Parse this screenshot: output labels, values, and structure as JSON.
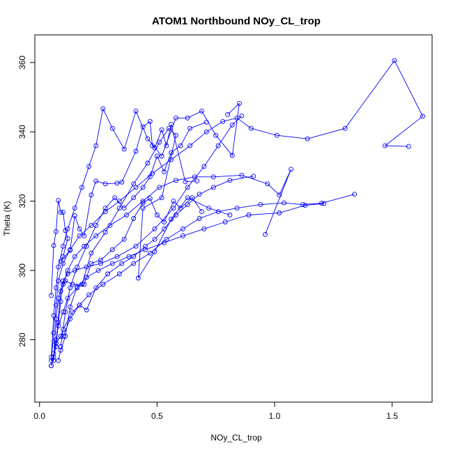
{
  "chart_data": {
    "type": "line",
    "title": "ATOM1 Northbound NOy_CL_trop",
    "xlabel": "NOy_CL_trop",
    "ylabel": "Theta (K)",
    "xlim": [
      -0.02,
      1.67
    ],
    "ylim": [
      262,
      368
    ],
    "xticks": [
      0.0,
      0.5,
      1.0,
      1.5
    ],
    "xtick_labels": [
      "0.0",
      "0.5",
      "1.0",
      "1.5"
    ],
    "yticks": [
      280,
      300,
      320,
      340,
      360
    ],
    "ytick_labels": [
      "280",
      "300",
      "320",
      "340",
      "360"
    ],
    "grid": false,
    "legend": "none",
    "marker": "open-circle",
    "color": "#0000ff",
    "series": [
      {
        "values": [
          [
            0.05,
            272.5
          ],
          [
            0.06,
            276
          ],
          [
            0.07,
            279
          ],
          [
            0.09,
            281
          ],
          [
            0.1,
            283
          ],
          [
            0.14,
            288
          ],
          [
            0.17,
            290
          ],
          [
            0.21,
            293
          ],
          [
            0.27,
            296
          ],
          [
            0.34,
            299
          ],
          [
            0.4,
            302
          ],
          [
            0.47,
            305
          ],
          [
            0.54,
            309
          ],
          [
            0.61,
            312
          ],
          [
            0.68,
            315
          ],
          [
            0.76,
            317
          ],
          [
            0.84,
            318
          ],
          [
            0.94,
            319
          ],
          [
            1.04,
            319.5
          ],
          [
            1.12,
            319
          ],
          [
            1.2,
            319.4
          ],
          [
            1.34,
            322
          ]
        ]
      },
      {
        "values": [
          [
            0.05,
            272.5
          ],
          [
            0.07,
            278
          ],
          [
            0.08,
            285
          ],
          [
            0.09,
            291
          ],
          [
            0.1,
            296
          ],
          [
            0.12,
            300
          ],
          [
            0.15,
            304
          ],
          [
            0.19,
            307
          ],
          [
            0.24,
            310
          ],
          [
            0.3,
            313
          ],
          [
            0.37,
            316
          ],
          [
            0.44,
            320
          ],
          [
            0.51,
            324
          ],
          [
            0.58,
            326
          ],
          [
            0.66,
            327
          ],
          [
            0.74,
            327
          ],
          [
            0.86,
            327.5
          ],
          [
            0.97,
            325
          ],
          [
            1.02,
            321.8
          ],
          [
            1.07,
            329.2
          ],
          [
            0.96,
            310.4
          ]
        ]
      },
      {
        "values": [
          [
            0.05,
            274
          ],
          [
            0.06,
            282
          ],
          [
            0.07,
            290
          ],
          [
            0.08,
            297
          ],
          [
            0.1,
            302
          ],
          [
            0.13,
            306
          ],
          [
            0.17,
            310
          ],
          [
            0.22,
            313
          ],
          [
            0.28,
            317
          ],
          [
            0.34,
            320
          ],
          [
            0.41,
            324
          ],
          [
            0.48,
            328
          ],
          [
            0.56,
            332
          ],
          [
            0.64,
            336
          ],
          [
            0.71,
            340
          ],
          [
            0.78,
            343
          ],
          [
            0.84,
            344
          ],
          [
            0.9,
            341
          ],
          [
            1.01,
            339
          ],
          [
            1.14,
            338
          ],
          [
            1.3,
            341
          ],
          [
            1.51,
            360.6
          ],
          [
            1.63,
            344.5
          ],
          [
            1.47,
            336
          ],
          [
            1.57,
            335.8
          ]
        ]
      },
      {
        "values": [
          [
            0.05,
            275
          ],
          [
            0.06,
            287
          ],
          [
            0.07,
            295
          ],
          [
            0.08,
            301
          ],
          [
            0.1,
            307
          ],
          [
            0.12,
            312
          ],
          [
            0.15,
            318
          ],
          [
            0.18,
            324
          ],
          [
            0.21,
            330
          ],
          [
            0.24,
            336
          ],
          [
            0.27,
            346.7
          ],
          [
            0.31,
            341
          ],
          [
            0.36,
            335
          ],
          [
            0.41,
            346
          ],
          [
            0.46,
            338
          ],
          [
            0.52,
            333
          ],
          [
            0.58,
            344
          ],
          [
            0.63,
            344
          ],
          [
            0.69,
            346
          ],
          [
            0.75,
            339
          ],
          [
            0.82,
            333.2
          ],
          [
            0.85,
            348.2
          ],
          [
            0.8,
            345
          ]
        ]
      },
      {
        "values": [
          [
            0.06,
            275
          ],
          [
            0.07,
            280
          ],
          [
            0.08,
            284
          ],
          [
            0.1,
            288
          ],
          [
            0.12,
            292
          ],
          [
            0.16,
            295
          ],
          [
            0.2,
            298
          ],
          [
            0.25,
            300
          ],
          [
            0.31,
            302
          ],
          [
            0.38,
            304
          ],
          [
            0.45,
            306
          ],
          [
            0.53,
            308
          ],
          [
            0.61,
            310
          ],
          [
            0.7,
            312
          ],
          [
            0.79,
            314
          ],
          [
            0.89,
            316
          ],
          [
            1.02,
            316.6
          ],
          [
            1.13,
            318.8
          ],
          [
            1.21,
            319.3
          ]
        ]
      },
      {
        "values": [
          [
            0.06,
            274
          ],
          [
            0.07,
            286
          ],
          [
            0.08,
            292
          ],
          [
            0.1,
            297
          ],
          [
            0.12,
            299
          ],
          [
            0.15,
            300
          ],
          [
            0.2,
            301
          ],
          [
            0.26,
            302
          ],
          [
            0.33,
            304
          ],
          [
            0.41,
            307
          ],
          [
            0.49,
            312
          ],
          [
            0.57,
            318
          ],
          [
            0.63,
            324
          ],
          [
            0.7,
            330
          ],
          [
            0.76,
            336
          ],
          [
            0.82,
            342
          ],
          [
            0.86,
            344.6
          ]
        ]
      },
      {
        "values": [
          [
            0.07,
            279
          ],
          [
            0.09,
            294
          ],
          [
            0.11,
            297
          ],
          [
            0.14,
            296
          ],
          [
            0.18,
            296
          ],
          [
            0.22,
            305
          ],
          [
            0.28,
            311
          ],
          [
            0.34,
            318
          ],
          [
            0.4,
            325
          ],
          [
            0.46,
            331
          ],
          [
            0.51,
            337
          ],
          [
            0.55,
            341
          ],
          [
            0.58,
            339
          ],
          [
            0.52,
            321
          ],
          [
            0.44,
            318
          ],
          [
            0.42,
            297.8
          ],
          [
            0.49,
            305.4
          ],
          [
            0.56,
            314.8
          ],
          [
            0.63,
            321
          ],
          [
            0.72,
            318
          ],
          [
            0.81,
            316
          ]
        ]
      },
      {
        "values": [
          [
            0.05,
            292.8
          ],
          [
            0.06,
            307.2
          ],
          [
            0.07,
            311.2
          ],
          [
            0.08,
            320.2
          ],
          [
            0.09,
            316.8
          ],
          [
            0.1,
            316.8
          ],
          [
            0.11,
            311.5
          ],
          [
            0.12,
            309.2
          ],
          [
            0.1,
            304
          ],
          [
            0.09,
            302.6
          ],
          [
            0.13,
            305.8
          ],
          [
            0.15,
            315.8
          ],
          [
            0.17,
            312
          ],
          [
            0.19,
            310
          ],
          [
            0.22,
            321.8
          ],
          [
            0.24,
            325.8
          ],
          [
            0.28,
            325
          ],
          [
            0.33,
            325.2
          ],
          [
            0.35,
            325.5
          ],
          [
            0.41,
            334.4
          ],
          [
            0.44,
            341.5
          ],
          [
            0.47,
            343
          ],
          [
            0.48,
            336
          ],
          [
            0.49,
            335.4
          ],
          [
            0.52,
            340.6
          ],
          [
            0.54,
            336
          ],
          [
            0.56,
            342.2
          ],
          [
            0.62,
            325.6
          ],
          [
            0.67,
            325.8
          ]
        ]
      },
      {
        "values": [
          [
            0.08,
            274
          ],
          [
            0.09,
            277
          ],
          [
            0.11,
            281
          ],
          [
            0.13,
            289.5
          ],
          [
            0.16,
            295.2
          ],
          [
            0.19,
            296
          ],
          [
            0.22,
            302
          ],
          [
            0.26,
            303
          ],
          [
            0.31,
            306
          ],
          [
            0.36,
            309
          ],
          [
            0.4,
            315
          ],
          [
            0.44,
            319.5
          ],
          [
            0.47,
            320.8
          ],
          [
            0.5,
            316
          ],
          [
            0.53,
            314
          ],
          [
            0.57,
            320
          ],
          [
            0.6,
            318
          ],
          [
            0.65,
            321
          ],
          [
            0.69,
            317
          ]
        ]
      },
      {
        "values": [
          [
            0.09,
            278
          ],
          [
            0.11,
            288
          ],
          [
            0.13,
            295
          ],
          [
            0.16,
            301
          ],
          [
            0.2,
            307
          ],
          [
            0.24,
            313
          ],
          [
            0.28,
            318
          ],
          [
            0.32,
            321
          ],
          [
            0.36,
            318
          ],
          [
            0.4,
            321
          ],
          [
            0.44,
            324
          ],
          [
            0.47,
            327
          ],
          [
            0.5,
            333
          ],
          [
            0.53,
            328.5
          ],
          [
            0.56,
            334
          ],
          [
            0.6,
            336
          ],
          [
            0.64,
            341
          ],
          [
            0.71,
            342.8
          ]
        ]
      },
      {
        "values": [
          [
            0.1,
            281
          ],
          [
            0.13,
            286
          ],
          [
            0.17,
            290
          ],
          [
            0.2,
            288.6
          ],
          [
            0.24,
            295
          ],
          [
            0.29,
            299
          ],
          [
            0.35,
            302
          ],
          [
            0.4,
            304
          ],
          [
            0.45,
            307
          ],
          [
            0.49,
            309
          ],
          [
            0.53,
            312
          ],
          [
            0.58,
            316
          ],
          [
            0.63,
            319
          ],
          [
            0.68,
            322
          ],
          [
            0.74,
            324
          ],
          [
            0.81,
            326
          ],
          [
            0.91,
            327.2
          ]
        ]
      }
    ]
  }
}
